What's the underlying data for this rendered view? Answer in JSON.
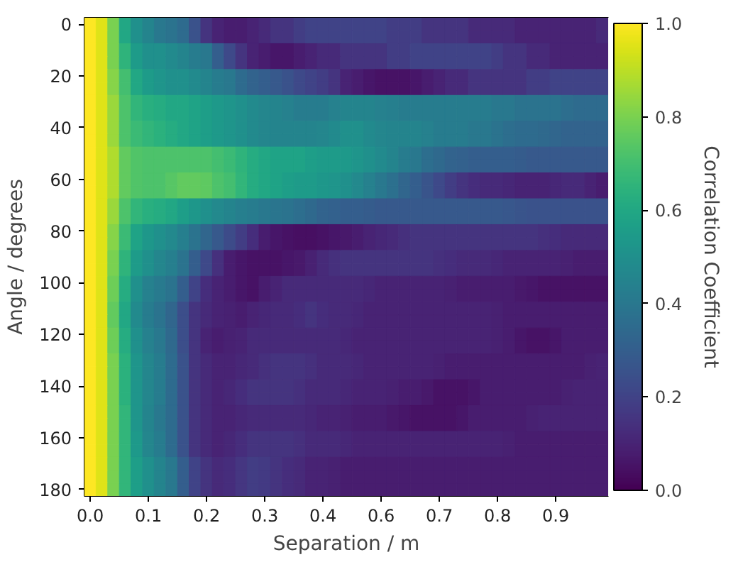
{
  "chart_data": {
    "type": "heatmap",
    "xlabel": "Separation / m",
    "ylabel": "Angle / degrees",
    "clabel": "Correlation Coefficient",
    "categories": [
      "0.0",
      null,
      null,
      null,
      null,
      "0.1",
      null,
      null,
      null,
      null,
      "0.2",
      null,
      null,
      null,
      null,
      "0.3",
      null,
      null,
      null,
      null,
      "0.4",
      null,
      null,
      null,
      null,
      "0.6",
      null,
      null,
      null,
      null,
      "0.7",
      null,
      null,
      null,
      null,
      "0.8",
      null,
      null,
      null,
      null,
      "0.9",
      null,
      null,
      null,
      null
    ],
    "y_categories": [
      "0",
      null,
      null,
      null,
      "20",
      null,
      null,
      null,
      "40",
      null,
      null,
      null,
      "60",
      null,
      null,
      null,
      "80",
      null,
      null,
      null,
      "100",
      null,
      null,
      null,
      "120",
      null,
      null,
      null,
      "140",
      null,
      null,
      null,
      "160",
      null,
      null,
      null,
      "180"
    ],
    "clim": [
      0,
      1
    ],
    "cticks": [
      {
        "value": 0,
        "label": "0.0"
      },
      0.2,
      0.4,
      0.6,
      0.8,
      {
        "value": 1,
        "label": "1.0"
      }
    ],
    "cells": [
      [
        1.0,
        0.95,
        0.8,
        0.6,
        0.5,
        0.45,
        0.4,
        0.38,
        0.35,
        0.25,
        0.15,
        0.1,
        0.08,
        0.08,
        0.1,
        0.12,
        0.15,
        0.15,
        0.18,
        0.2,
        0.2,
        0.2,
        0.2,
        0.2,
        0.2,
        0.2,
        0.18,
        0.18,
        0.18,
        0.15,
        0.15,
        0.15,
        0.15,
        0.12,
        0.12,
        0.12,
        0.12,
        0.1,
        0.1,
        0.1,
        0.1,
        0.1,
        0.1,
        0.1,
        0.12
      ],
      [
        1.0,
        0.95,
        0.8,
        0.6,
        0.5,
        0.45,
        0.4,
        0.38,
        0.35,
        0.25,
        0.15,
        0.1,
        0.08,
        0.08,
        0.1,
        0.12,
        0.15,
        0.15,
        0.18,
        0.2,
        0.2,
        0.2,
        0.2,
        0.2,
        0.2,
        0.2,
        0.18,
        0.18,
        0.18,
        0.15,
        0.15,
        0.15,
        0.15,
        0.12,
        0.12,
        0.12,
        0.12,
        0.1,
        0.1,
        0.1,
        0.1,
        0.1,
        0.1,
        0.1,
        0.12
      ],
      [
        1.0,
        0.95,
        0.8,
        0.65,
        0.55,
        0.5,
        0.5,
        0.48,
        0.45,
        0.42,
        0.4,
        0.3,
        0.22,
        0.15,
        0.1,
        0.08,
        0.06,
        0.06,
        0.08,
        0.1,
        0.12,
        0.12,
        0.15,
        0.15,
        0.15,
        0.15,
        0.18,
        0.18,
        0.2,
        0.2,
        0.2,
        0.2,
        0.2,
        0.2,
        0.2,
        0.18,
        0.15,
        0.15,
        0.12,
        0.12,
        0.1,
        0.1,
        0.1,
        0.1,
        0.1
      ],
      [
        1.0,
        0.95,
        0.8,
        0.65,
        0.55,
        0.5,
        0.5,
        0.48,
        0.45,
        0.42,
        0.4,
        0.3,
        0.22,
        0.15,
        0.1,
        0.08,
        0.06,
        0.06,
        0.08,
        0.1,
        0.12,
        0.12,
        0.15,
        0.15,
        0.15,
        0.15,
        0.18,
        0.18,
        0.2,
        0.2,
        0.2,
        0.2,
        0.2,
        0.2,
        0.2,
        0.18,
        0.15,
        0.15,
        0.12,
        0.12,
        0.1,
        0.1,
        0.1,
        0.1,
        0.1
      ],
      [
        1.0,
        0.95,
        0.82,
        0.7,
        0.6,
        0.55,
        0.52,
        0.5,
        0.5,
        0.48,
        0.45,
        0.42,
        0.4,
        0.35,
        0.32,
        0.3,
        0.28,
        0.25,
        0.22,
        0.2,
        0.18,
        0.15,
        0.1,
        0.08,
        0.06,
        0.05,
        0.05,
        0.05,
        0.06,
        0.08,
        0.1,
        0.12,
        0.12,
        0.15,
        0.15,
        0.15,
        0.15,
        0.15,
        0.18,
        0.18,
        0.2,
        0.2,
        0.2,
        0.2,
        0.2
      ],
      [
        1.0,
        0.95,
        0.82,
        0.7,
        0.6,
        0.55,
        0.52,
        0.5,
        0.5,
        0.48,
        0.45,
        0.42,
        0.4,
        0.35,
        0.32,
        0.3,
        0.28,
        0.25,
        0.22,
        0.2,
        0.18,
        0.15,
        0.1,
        0.08,
        0.06,
        0.05,
        0.05,
        0.05,
        0.06,
        0.08,
        0.1,
        0.12,
        0.12,
        0.15,
        0.15,
        0.15,
        0.15,
        0.15,
        0.18,
        0.18,
        0.2,
        0.2,
        0.2,
        0.2,
        0.2
      ],
      [
        1.0,
        0.95,
        0.85,
        0.72,
        0.66,
        0.63,
        0.62,
        0.6,
        0.6,
        0.58,
        0.56,
        0.54,
        0.52,
        0.5,
        0.48,
        0.46,
        0.45,
        0.44,
        0.42,
        0.42,
        0.42,
        0.44,
        0.45,
        0.45,
        0.45,
        0.44,
        0.43,
        0.42,
        0.42,
        0.42,
        0.42,
        0.42,
        0.42,
        0.42,
        0.42,
        0.4,
        0.4,
        0.38,
        0.38,
        0.38,
        0.38,
        0.36,
        0.35,
        0.35,
        0.35
      ],
      [
        1.0,
        0.95,
        0.85,
        0.72,
        0.66,
        0.63,
        0.62,
        0.6,
        0.6,
        0.58,
        0.56,
        0.54,
        0.52,
        0.5,
        0.48,
        0.46,
        0.45,
        0.44,
        0.42,
        0.42,
        0.42,
        0.44,
        0.45,
        0.45,
        0.45,
        0.44,
        0.43,
        0.42,
        0.42,
        0.42,
        0.42,
        0.42,
        0.42,
        0.42,
        0.42,
        0.4,
        0.4,
        0.38,
        0.38,
        0.38,
        0.38,
        0.36,
        0.35,
        0.35,
        0.35
      ],
      [
        1.0,
        0.95,
        0.85,
        0.72,
        0.68,
        0.66,
        0.64,
        0.62,
        0.6,
        0.58,
        0.56,
        0.54,
        0.52,
        0.5,
        0.48,
        0.46,
        0.45,
        0.45,
        0.45,
        0.45,
        0.46,
        0.48,
        0.5,
        0.5,
        0.48,
        0.46,
        0.45,
        0.45,
        0.45,
        0.44,
        0.42,
        0.42,
        0.42,
        0.4,
        0.4,
        0.38,
        0.36,
        0.35,
        0.35,
        0.34,
        0.33,
        0.32,
        0.32,
        0.32,
        0.32
      ],
      [
        1.0,
        0.95,
        0.85,
        0.72,
        0.68,
        0.66,
        0.64,
        0.62,
        0.6,
        0.58,
        0.56,
        0.54,
        0.52,
        0.5,
        0.48,
        0.46,
        0.45,
        0.45,
        0.45,
        0.45,
        0.46,
        0.48,
        0.5,
        0.5,
        0.48,
        0.46,
        0.45,
        0.45,
        0.45,
        0.44,
        0.42,
        0.42,
        0.42,
        0.4,
        0.4,
        0.38,
        0.36,
        0.35,
        0.35,
        0.34,
        0.33,
        0.32,
        0.32,
        0.32,
        0.32
      ],
      [
        1.0,
        0.95,
        0.88,
        0.76,
        0.73,
        0.72,
        0.72,
        0.72,
        0.72,
        0.72,
        0.72,
        0.7,
        0.68,
        0.65,
        0.62,
        0.6,
        0.58,
        0.58,
        0.58,
        0.56,
        0.55,
        0.55,
        0.54,
        0.52,
        0.5,
        0.48,
        0.45,
        0.42,
        0.4,
        0.36,
        0.34,
        0.32,
        0.31,
        0.3,
        0.3,
        0.3,
        0.3,
        0.29,
        0.28,
        0.28,
        0.28,
        0.28,
        0.28,
        0.28,
        0.28
      ],
      [
        1.0,
        0.95,
        0.88,
        0.76,
        0.73,
        0.72,
        0.72,
        0.72,
        0.72,
        0.72,
        0.72,
        0.7,
        0.68,
        0.65,
        0.62,
        0.6,
        0.58,
        0.58,
        0.58,
        0.56,
        0.55,
        0.55,
        0.54,
        0.52,
        0.5,
        0.48,
        0.45,
        0.42,
        0.4,
        0.36,
        0.34,
        0.32,
        0.31,
        0.3,
        0.3,
        0.3,
        0.3,
        0.29,
        0.28,
        0.28,
        0.28,
        0.28,
        0.28,
        0.28,
        0.28
      ],
      [
        1.0,
        0.95,
        0.88,
        0.76,
        0.73,
        0.72,
        0.72,
        0.74,
        0.76,
        0.76,
        0.75,
        0.72,
        0.7,
        0.66,
        0.62,
        0.6,
        0.58,
        0.56,
        0.55,
        0.55,
        0.53,
        0.52,
        0.5,
        0.47,
        0.44,
        0.4,
        0.37,
        0.33,
        0.3,
        0.26,
        0.22,
        0.18,
        0.15,
        0.13,
        0.12,
        0.12,
        0.11,
        0.1,
        0.1,
        0.1,
        0.11,
        0.12,
        0.12,
        0.1,
        0.08
      ],
      [
        1.0,
        0.95,
        0.88,
        0.76,
        0.73,
        0.72,
        0.72,
        0.74,
        0.76,
        0.76,
        0.75,
        0.72,
        0.7,
        0.66,
        0.62,
        0.6,
        0.58,
        0.56,
        0.55,
        0.55,
        0.53,
        0.52,
        0.5,
        0.47,
        0.44,
        0.4,
        0.37,
        0.33,
        0.3,
        0.26,
        0.22,
        0.18,
        0.15,
        0.13,
        0.12,
        0.12,
        0.11,
        0.1,
        0.1,
        0.1,
        0.11,
        0.12,
        0.12,
        0.1,
        0.08
      ],
      [
        1.0,
        0.95,
        0.85,
        0.72,
        0.66,
        0.63,
        0.62,
        0.6,
        0.56,
        0.53,
        0.5,
        0.47,
        0.45,
        0.43,
        0.42,
        0.4,
        0.39,
        0.38,
        0.36,
        0.34,
        0.32,
        0.31,
        0.3,
        0.3,
        0.29,
        0.28,
        0.28,
        0.28,
        0.28,
        0.28,
        0.28,
        0.28,
        0.28,
        0.28,
        0.28,
        0.28,
        0.27,
        0.26,
        0.25,
        0.25,
        0.25,
        0.25,
        0.25,
        0.25,
        0.25
      ],
      [
        1.0,
        0.95,
        0.85,
        0.72,
        0.66,
        0.63,
        0.62,
        0.6,
        0.56,
        0.53,
        0.5,
        0.47,
        0.45,
        0.43,
        0.42,
        0.4,
        0.39,
        0.38,
        0.36,
        0.34,
        0.32,
        0.31,
        0.3,
        0.3,
        0.29,
        0.28,
        0.28,
        0.28,
        0.28,
        0.28,
        0.28,
        0.28,
        0.28,
        0.28,
        0.28,
        0.28,
        0.27,
        0.26,
        0.25,
        0.25,
        0.25,
        0.25,
        0.25,
        0.25,
        0.25
      ],
      [
        1.0,
        0.95,
        0.82,
        0.68,
        0.58,
        0.53,
        0.5,
        0.47,
        0.43,
        0.38,
        0.33,
        0.28,
        0.23,
        0.18,
        0.13,
        0.08,
        0.06,
        0.05,
        0.04,
        0.04,
        0.05,
        0.06,
        0.07,
        0.08,
        0.1,
        0.11,
        0.12,
        0.14,
        0.15,
        0.15,
        0.15,
        0.15,
        0.15,
        0.15,
        0.15,
        0.15,
        0.15,
        0.15,
        0.15,
        0.14,
        0.13,
        0.12,
        0.12,
        0.12,
        0.12
      ],
      [
        1.0,
        0.95,
        0.82,
        0.68,
        0.58,
        0.53,
        0.5,
        0.47,
        0.43,
        0.38,
        0.33,
        0.28,
        0.23,
        0.18,
        0.13,
        0.08,
        0.06,
        0.05,
        0.04,
        0.04,
        0.05,
        0.06,
        0.07,
        0.08,
        0.1,
        0.11,
        0.12,
        0.14,
        0.15,
        0.15,
        0.15,
        0.15,
        0.15,
        0.15,
        0.15,
        0.15,
        0.15,
        0.15,
        0.15,
        0.14,
        0.13,
        0.12,
        0.12,
        0.12,
        0.12
      ],
      [
        1.0,
        0.95,
        0.8,
        0.65,
        0.55,
        0.5,
        0.46,
        0.43,
        0.38,
        0.3,
        0.22,
        0.14,
        0.08,
        0.06,
        0.05,
        0.05,
        0.05,
        0.06,
        0.07,
        0.09,
        0.12,
        0.14,
        0.15,
        0.15,
        0.15,
        0.15,
        0.15,
        0.15,
        0.15,
        0.15,
        0.14,
        0.13,
        0.12,
        0.12,
        0.12,
        0.11,
        0.1,
        0.1,
        0.1,
        0.1,
        0.1,
        0.09,
        0.08,
        0.08,
        0.08
      ],
      [
        1.0,
        0.95,
        0.8,
        0.65,
        0.55,
        0.5,
        0.46,
        0.43,
        0.38,
        0.3,
        0.22,
        0.14,
        0.08,
        0.06,
        0.05,
        0.05,
        0.05,
        0.06,
        0.07,
        0.09,
        0.12,
        0.14,
        0.15,
        0.15,
        0.15,
        0.15,
        0.15,
        0.15,
        0.15,
        0.15,
        0.14,
        0.13,
        0.12,
        0.12,
        0.12,
        0.11,
        0.1,
        0.1,
        0.1,
        0.1,
        0.1,
        0.09,
        0.08,
        0.08,
        0.08
      ],
      [
        1.0,
        0.95,
        0.78,
        0.62,
        0.5,
        0.44,
        0.41,
        0.38,
        0.3,
        0.2,
        0.13,
        0.1,
        0.08,
        0.06,
        0.05,
        0.08,
        0.1,
        0.12,
        0.12,
        0.12,
        0.12,
        0.12,
        0.12,
        0.12,
        0.11,
        0.1,
        0.1,
        0.1,
        0.1,
        0.1,
        0.1,
        0.09,
        0.08,
        0.08,
        0.08,
        0.08,
        0.08,
        0.07,
        0.06,
        0.05,
        0.05,
        0.05,
        0.05,
        0.05,
        0.05
      ],
      [
        1.0,
        0.95,
        0.78,
        0.62,
        0.5,
        0.44,
        0.41,
        0.38,
        0.3,
        0.2,
        0.13,
        0.1,
        0.08,
        0.06,
        0.05,
        0.08,
        0.1,
        0.12,
        0.12,
        0.12,
        0.12,
        0.12,
        0.12,
        0.12,
        0.11,
        0.1,
        0.1,
        0.1,
        0.1,
        0.1,
        0.1,
        0.09,
        0.08,
        0.08,
        0.08,
        0.08,
        0.08,
        0.07,
        0.06,
        0.05,
        0.05,
        0.05,
        0.05,
        0.05,
        0.05
      ],
      [
        1.0,
        0.95,
        0.76,
        0.6,
        0.48,
        0.42,
        0.38,
        0.33,
        0.24,
        0.15,
        0.12,
        0.1,
        0.09,
        0.08,
        0.1,
        0.11,
        0.12,
        0.12,
        0.13,
        0.15,
        0.13,
        0.12,
        0.12,
        0.11,
        0.1,
        0.1,
        0.1,
        0.1,
        0.1,
        0.1,
        0.1,
        0.1,
        0.1,
        0.1,
        0.1,
        0.09,
        0.08,
        0.08,
        0.08,
        0.08,
        0.08,
        0.08,
        0.08,
        0.08,
        0.08
      ],
      [
        1.0,
        0.95,
        0.76,
        0.6,
        0.48,
        0.42,
        0.38,
        0.33,
        0.24,
        0.15,
        0.12,
        0.1,
        0.09,
        0.08,
        0.1,
        0.11,
        0.12,
        0.12,
        0.13,
        0.15,
        0.13,
        0.12,
        0.12,
        0.11,
        0.1,
        0.1,
        0.1,
        0.1,
        0.1,
        0.1,
        0.1,
        0.1,
        0.1,
        0.1,
        0.1,
        0.09,
        0.08,
        0.08,
        0.08,
        0.08,
        0.08,
        0.08,
        0.08,
        0.08,
        0.08
      ],
      [
        1.0,
        0.95,
        0.78,
        0.62,
        0.5,
        0.44,
        0.4,
        0.34,
        0.24,
        0.15,
        0.1,
        0.08,
        0.09,
        0.1,
        0.12,
        0.12,
        0.12,
        0.12,
        0.12,
        0.12,
        0.12,
        0.12,
        0.11,
        0.1,
        0.1,
        0.1,
        0.1,
        0.1,
        0.1,
        0.1,
        0.1,
        0.1,
        0.1,
        0.1,
        0.1,
        0.09,
        0.08,
        0.06,
        0.05,
        0.05,
        0.06,
        0.08,
        0.08,
        0.08,
        0.08
      ],
      [
        1.0,
        0.95,
        0.78,
        0.62,
        0.5,
        0.44,
        0.4,
        0.34,
        0.24,
        0.15,
        0.1,
        0.08,
        0.09,
        0.1,
        0.12,
        0.12,
        0.12,
        0.12,
        0.12,
        0.12,
        0.12,
        0.12,
        0.11,
        0.1,
        0.1,
        0.1,
        0.1,
        0.1,
        0.1,
        0.1,
        0.1,
        0.1,
        0.1,
        0.1,
        0.1,
        0.09,
        0.08,
        0.06,
        0.05,
        0.05,
        0.06,
        0.08,
        0.08,
        0.08,
        0.08
      ],
      [
        1.0,
        0.95,
        0.8,
        0.64,
        0.52,
        0.46,
        0.42,
        0.35,
        0.25,
        0.15,
        0.12,
        0.1,
        0.1,
        0.11,
        0.12,
        0.14,
        0.15,
        0.15,
        0.15,
        0.14,
        0.12,
        0.12,
        0.12,
        0.11,
        0.1,
        0.1,
        0.1,
        0.1,
        0.1,
        0.1,
        0.09,
        0.08,
        0.08,
        0.08,
        0.08,
        0.08,
        0.08,
        0.08,
        0.08,
        0.08,
        0.08,
        0.08,
        0.08,
        0.09,
        0.1
      ],
      [
        1.0,
        0.95,
        0.8,
        0.64,
        0.52,
        0.46,
        0.42,
        0.35,
        0.25,
        0.15,
        0.12,
        0.1,
        0.1,
        0.11,
        0.12,
        0.14,
        0.15,
        0.15,
        0.15,
        0.14,
        0.12,
        0.12,
        0.12,
        0.11,
        0.1,
        0.1,
        0.1,
        0.1,
        0.1,
        0.1,
        0.09,
        0.08,
        0.08,
        0.08,
        0.08,
        0.08,
        0.08,
        0.08,
        0.08,
        0.08,
        0.08,
        0.08,
        0.08,
        0.09,
        0.1
      ],
      [
        1.0,
        0.95,
        0.8,
        0.64,
        0.52,
        0.46,
        0.42,
        0.35,
        0.25,
        0.15,
        0.12,
        0.1,
        0.11,
        0.13,
        0.15,
        0.15,
        0.15,
        0.15,
        0.14,
        0.12,
        0.12,
        0.12,
        0.11,
        0.1,
        0.1,
        0.1,
        0.09,
        0.08,
        0.08,
        0.07,
        0.05,
        0.05,
        0.05,
        0.06,
        0.08,
        0.08,
        0.08,
        0.08,
        0.08,
        0.08,
        0.08,
        0.09,
        0.1,
        0.1,
        0.1
      ],
      [
        1.0,
        0.95,
        0.8,
        0.64,
        0.52,
        0.46,
        0.42,
        0.35,
        0.25,
        0.15,
        0.12,
        0.1,
        0.11,
        0.13,
        0.15,
        0.15,
        0.15,
        0.15,
        0.14,
        0.12,
        0.12,
        0.12,
        0.11,
        0.1,
        0.1,
        0.1,
        0.09,
        0.08,
        0.08,
        0.07,
        0.05,
        0.05,
        0.05,
        0.06,
        0.08,
        0.08,
        0.08,
        0.08,
        0.08,
        0.08,
        0.08,
        0.09,
        0.1,
        0.1,
        0.1
      ],
      [
        1.0,
        0.95,
        0.8,
        0.66,
        0.52,
        0.45,
        0.4,
        0.35,
        0.25,
        0.15,
        0.12,
        0.1,
        0.1,
        0.11,
        0.12,
        0.12,
        0.12,
        0.12,
        0.12,
        0.11,
        0.1,
        0.1,
        0.09,
        0.08,
        0.08,
        0.08,
        0.07,
        0.06,
        0.05,
        0.05,
        0.05,
        0.05,
        0.06,
        0.08,
        0.08,
        0.08,
        0.08,
        0.08,
        0.09,
        0.1,
        0.1,
        0.1,
        0.1,
        0.1,
        0.1
      ],
      [
        1.0,
        0.95,
        0.8,
        0.66,
        0.52,
        0.45,
        0.4,
        0.35,
        0.25,
        0.15,
        0.12,
        0.1,
        0.1,
        0.11,
        0.12,
        0.12,
        0.12,
        0.12,
        0.12,
        0.11,
        0.1,
        0.1,
        0.09,
        0.08,
        0.08,
        0.08,
        0.07,
        0.06,
        0.05,
        0.05,
        0.05,
        0.05,
        0.06,
        0.08,
        0.08,
        0.08,
        0.08,
        0.08,
        0.09,
        0.1,
        0.1,
        0.1,
        0.1,
        0.1,
        0.1
      ],
      [
        1.0,
        0.95,
        0.8,
        0.66,
        0.54,
        0.46,
        0.42,
        0.35,
        0.25,
        0.15,
        0.12,
        0.1,
        0.11,
        0.13,
        0.15,
        0.15,
        0.15,
        0.15,
        0.14,
        0.12,
        0.12,
        0.12,
        0.11,
        0.1,
        0.1,
        0.1,
        0.1,
        0.1,
        0.1,
        0.1,
        0.1,
        0.1,
        0.1,
        0.1,
        0.1,
        0.1,
        0.09,
        0.08,
        0.08,
        0.08,
        0.08,
        0.08,
        0.08,
        0.08,
        0.08
      ],
      [
        1.0,
        0.95,
        0.8,
        0.66,
        0.54,
        0.46,
        0.42,
        0.35,
        0.25,
        0.15,
        0.12,
        0.1,
        0.11,
        0.13,
        0.15,
        0.15,
        0.15,
        0.15,
        0.14,
        0.12,
        0.12,
        0.12,
        0.11,
        0.1,
        0.1,
        0.1,
        0.1,
        0.1,
        0.1,
        0.1,
        0.1,
        0.1,
        0.1,
        0.1,
        0.1,
        0.1,
        0.09,
        0.08,
        0.08,
        0.08,
        0.08,
        0.08,
        0.08,
        0.08,
        0.08
      ],
      [
        1.0,
        0.95,
        0.8,
        0.66,
        0.56,
        0.5,
        0.45,
        0.4,
        0.3,
        0.2,
        0.15,
        0.12,
        0.13,
        0.16,
        0.18,
        0.17,
        0.15,
        0.13,
        0.12,
        0.1,
        0.1,
        0.09,
        0.08,
        0.08,
        0.08,
        0.08,
        0.08,
        0.08,
        0.08,
        0.08,
        0.08,
        0.08,
        0.08,
        0.08,
        0.08,
        0.08,
        0.08,
        0.08,
        0.08,
        0.08,
        0.08,
        0.08,
        0.08,
        0.08,
        0.08
      ],
      [
        1.0,
        0.95,
        0.8,
        0.66,
        0.56,
        0.5,
        0.45,
        0.4,
        0.3,
        0.2,
        0.15,
        0.12,
        0.13,
        0.16,
        0.18,
        0.17,
        0.15,
        0.13,
        0.12,
        0.1,
        0.1,
        0.09,
        0.08,
        0.08,
        0.08,
        0.08,
        0.08,
        0.08,
        0.08,
        0.08,
        0.08,
        0.08,
        0.08,
        0.08,
        0.08,
        0.08,
        0.08,
        0.08,
        0.08,
        0.08,
        0.08,
        0.08,
        0.08,
        0.08,
        0.08
      ],
      [
        1.0,
        0.95,
        0.8,
        0.66,
        0.56,
        0.5,
        0.45,
        0.4,
        0.3,
        0.2,
        0.15,
        0.12,
        0.13,
        0.16,
        0.18,
        0.17,
        0.15,
        0.13,
        0.12,
        0.1,
        0.1,
        0.09,
        0.08,
        0.08,
        0.08,
        0.08,
        0.08,
        0.08,
        0.08,
        0.08,
        0.08,
        0.08,
        0.08,
        0.08,
        0.08,
        0.08,
        0.08,
        0.08,
        0.08,
        0.08,
        0.08,
        0.08,
        0.08,
        0.08,
        0.08
      ]
    ]
  }
}
